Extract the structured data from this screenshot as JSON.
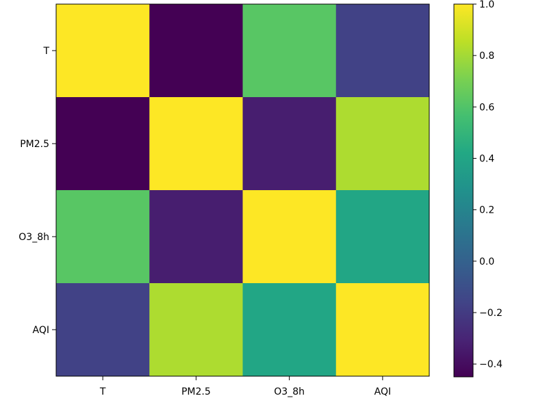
{
  "chart_data": {
    "type": "heatmap",
    "title": "",
    "xlabel": "",
    "ylabel": "",
    "x_categories": [
      "T",
      "PM2.5",
      "O3_8h",
      "AQI"
    ],
    "y_categories": [
      "T",
      "PM2.5",
      "O3_8h",
      "AQI"
    ],
    "matrix": [
      [
        1.0,
        -0.45,
        0.62,
        -0.17
      ],
      [
        -0.45,
        1.0,
        -0.33,
        0.82
      ],
      [
        0.62,
        -0.33,
        1.0,
        0.41
      ],
      [
        -0.17,
        0.82,
        0.41,
        1.0
      ]
    ],
    "colormap": "viridis",
    "vmin": -0.45,
    "vmax": 1.0,
    "colorbar_ticks": [
      1.0,
      0.8,
      0.6,
      0.4,
      0.2,
      0.0,
      -0.2,
      -0.4
    ],
    "colorbar_tick_labels": [
      "1.0",
      "0.8",
      "0.6",
      "0.4",
      "0.2",
      "0.0",
      "−0.2",
      "−0.4"
    ],
    "grid": false,
    "colorbar_position": "right"
  }
}
